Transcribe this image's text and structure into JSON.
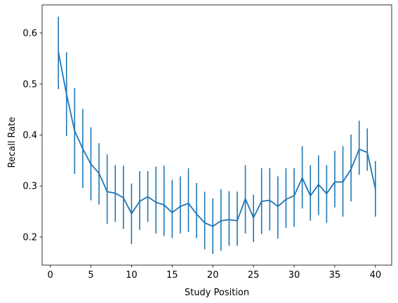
{
  "chart_data": {
    "type": "line",
    "title": "",
    "xlabel": "Study Position",
    "ylabel": "Recall Rate",
    "xlim": [
      -1,
      42
    ],
    "ylim": [
      0.145,
      0.655
    ],
    "xticks": [
      0,
      5,
      10,
      15,
      20,
      25,
      30,
      35,
      40
    ],
    "xtick_labels": [
      "0",
      "5",
      "10",
      "15",
      "20",
      "25",
      "30",
      "35",
      "40"
    ],
    "yticks": [
      0.2,
      0.3,
      0.4,
      0.5,
      0.6
    ],
    "ytick_labels": [
      "0.2",
      "0.3",
      "0.4",
      "0.5",
      "0.6"
    ],
    "grid": false,
    "color": "#1f77b4",
    "series": [
      {
        "x": [
          1,
          2,
          3,
          4,
          5,
          6,
          7,
          8,
          9,
          10,
          11,
          12,
          13,
          14,
          15,
          16,
          17,
          18,
          19,
          20,
          21,
          22,
          23,
          24,
          25,
          26,
          27,
          28,
          29,
          30,
          31,
          32,
          33,
          34,
          35,
          36,
          37,
          38,
          39,
          40
        ],
        "y": [
          0.563,
          0.48,
          0.408,
          0.373,
          0.343,
          0.325,
          0.289,
          0.286,
          0.277,
          0.246,
          0.27,
          0.279,
          0.268,
          0.263,
          0.248,
          0.26,
          0.266,
          0.245,
          0.228,
          0.221,
          0.232,
          0.234,
          0.232,
          0.275,
          0.238,
          0.27,
          0.272,
          0.26,
          0.274,
          0.281,
          0.316,
          0.281,
          0.303,
          0.285,
          0.308,
          0.308,
          0.333,
          0.372,
          0.366,
          0.294
        ],
        "err_low": [
          0.49,
          0.398,
          0.324,
          0.296,
          0.272,
          0.264,
          0.226,
          0.23,
          0.216,
          0.186,
          0.214,
          0.23,
          0.207,
          0.202,
          0.198,
          0.207,
          0.21,
          0.198,
          0.176,
          0.167,
          0.173,
          0.183,
          0.183,
          0.207,
          0.19,
          0.206,
          0.213,
          0.197,
          0.218,
          0.22,
          0.256,
          0.232,
          0.243,
          0.228,
          0.258,
          0.24,
          0.27,
          0.322,
          0.33,
          0.24
        ],
        "err_high": [
          0.632,
          0.562,
          0.492,
          0.451,
          0.415,
          0.384,
          0.362,
          0.341,
          0.34,
          0.305,
          0.329,
          0.329,
          0.338,
          0.34,
          0.312,
          0.319,
          0.335,
          0.306,
          0.289,
          0.276,
          0.294,
          0.29,
          0.289,
          0.341,
          0.283,
          0.335,
          0.335,
          0.319,
          0.335,
          0.335,
          0.378,
          0.341,
          0.36,
          0.341,
          0.369,
          0.378,
          0.401,
          0.428,
          0.413,
          0.349
        ]
      }
    ]
  }
}
